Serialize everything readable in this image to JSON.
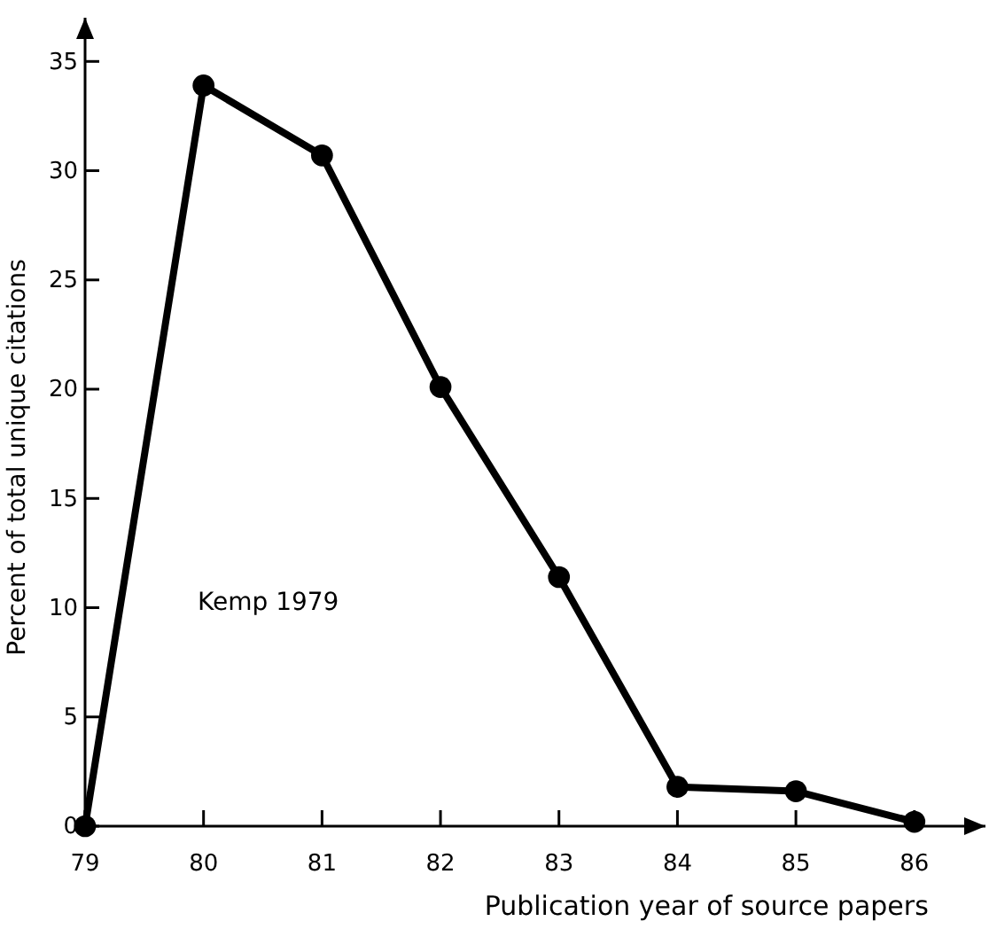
{
  "chart_data": {
    "type": "line",
    "xlabel": "Publication year of source papers",
    "ylabel": "Percent of total unique citations",
    "x": [
      79,
      80,
      81,
      82,
      83,
      84,
      85,
      86
    ],
    "series": [
      {
        "color": "#000000",
        "values": [
          0,
          33.9,
          30.7,
          20.1,
          11.4,
          1.8,
          1.6,
          0.2
        ]
      }
    ],
    "xlim": [
      79,
      86.6
    ],
    "ylim": [
      0,
      37
    ],
    "xticks": [
      79,
      80,
      81,
      82,
      83,
      84,
      85,
      86
    ],
    "yticks": [
      0,
      5,
      10,
      15,
      20,
      25,
      30,
      35
    ],
    "annotations": [
      "Kemp 1979"
    ],
    "marker": "circle",
    "line_style": "solid"
  }
}
